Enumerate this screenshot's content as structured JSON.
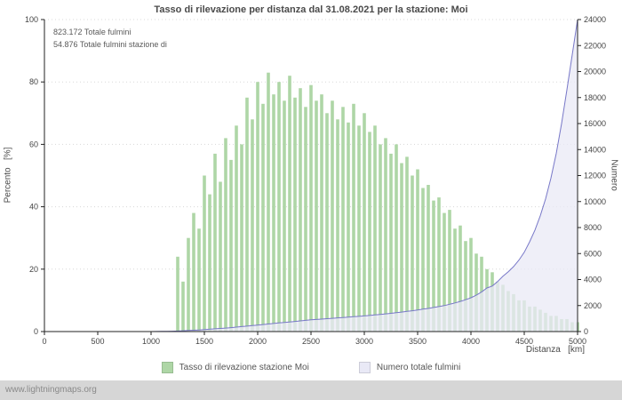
{
  "annotations": {
    "line1": "823.172 Totale fulmini",
    "line2": "54.876 Totale fulmini stazione di"
  },
  "axes_labels": {
    "left": "Percento   [%]",
    "right": "Numero",
    "x": "Distanza   [km]"
  },
  "footer": {
    "link": "www.lightningmaps.org"
  },
  "colors": {
    "background": "#ffffff",
    "grid": "#d8d8d8",
    "axis": "#222222",
    "bar_green": "#aed6a6",
    "line_purple": "#7878c8",
    "area_lavender": "#e9e9f6",
    "footer_bg": "#d6d6d6",
    "text": "#444444"
  },
  "chart_data": {
    "type": "bar",
    "title": "Tasso di rilevazione per distanza dal 31.08.2021 per la stazione: Moi",
    "xlabel": "Distanza [km]",
    "ylabel_left": "Percento [%]",
    "ylabel_right": "Numero",
    "xlim": [
      0,
      5000
    ],
    "ylim_left": [
      0,
      100
    ],
    "ylim_right": [
      0,
      24000
    ],
    "x_ticks": [
      0,
      500,
      1000,
      1500,
      2000,
      2500,
      3000,
      3500,
      4000,
      4500,
      5000
    ],
    "y_left_ticks": [
      0,
      20,
      40,
      60,
      80,
      100
    ],
    "y_right_ticks": [
      0,
      2000,
      4000,
      6000,
      8000,
      10000,
      12000,
      14000,
      16000,
      18000,
      20000,
      22000,
      24000
    ],
    "grid": "horizontal-dotted",
    "legend_position": "bottom-center",
    "x_start": 0,
    "x_step": 50,
    "series": [
      {
        "name": "Tasso di rilevazione stazione Moi",
        "type": "bar",
        "axis": "left",
        "color": "#aed6a6",
        "values": [
          0,
          0,
          0,
          0,
          0,
          0,
          0,
          0,
          0,
          0,
          0,
          0,
          0,
          0,
          0,
          0,
          0,
          0,
          0,
          0,
          0,
          0,
          0,
          0,
          0,
          24,
          16,
          30,
          38,
          33,
          50,
          44,
          57,
          48,
          62,
          55,
          66,
          60,
          75,
          68,
          80,
          73,
          83,
          76,
          80,
          74,
          82,
          75,
          78,
          72,
          79,
          74,
          76,
          70,
          74,
          68,
          72,
          67,
          73,
          66,
          70,
          64,
          66,
          60,
          62,
          57,
          60,
          54,
          56,
          50,
          52,
          46,
          47,
          42,
          43,
          38,
          39,
          33,
          34,
          29,
          30,
          25,
          24,
          20,
          19,
          16,
          15,
          13,
          12,
          10,
          10,
          8,
          8,
          7,
          6,
          5,
          5,
          4,
          4,
          3,
          3
        ]
      },
      {
        "name": "Numero totale fulmini",
        "type": "area-line",
        "axis": "right",
        "color": "#7878c8",
        "fill": "#e9e9f6",
        "values": [
          0,
          0,
          0,
          0,
          0,
          0,
          0,
          0,
          0,
          0,
          0,
          0,
          0,
          0,
          0,
          0,
          0,
          0,
          0,
          0,
          0,
          10,
          15,
          20,
          30,
          40,
          60,
          80,
          100,
          120,
          150,
          180,
          210,
          240,
          270,
          300,
          340,
          380,
          420,
          460,
          500,
          540,
          580,
          620,
          660,
          700,
          740,
          780,
          820,
          860,
          900,
          930,
          960,
          990,
          1020,
          1050,
          1080,
          1110,
          1140,
          1170,
          1200,
          1240,
          1280,
          1320,
          1360,
          1400,
          1450,
          1500,
          1550,
          1600,
          1660,
          1720,
          1780,
          1850,
          1920,
          2000,
          2100,
          2200,
          2320,
          2450,
          2600,
          2800,
          3050,
          3350,
          3500,
          3850,
          4250,
          4600,
          5000,
          5500,
          6100,
          6900,
          7800,
          8900,
          10200,
          11800,
          13700,
          16000,
          18600,
          21300,
          24000
        ]
      }
    ]
  }
}
